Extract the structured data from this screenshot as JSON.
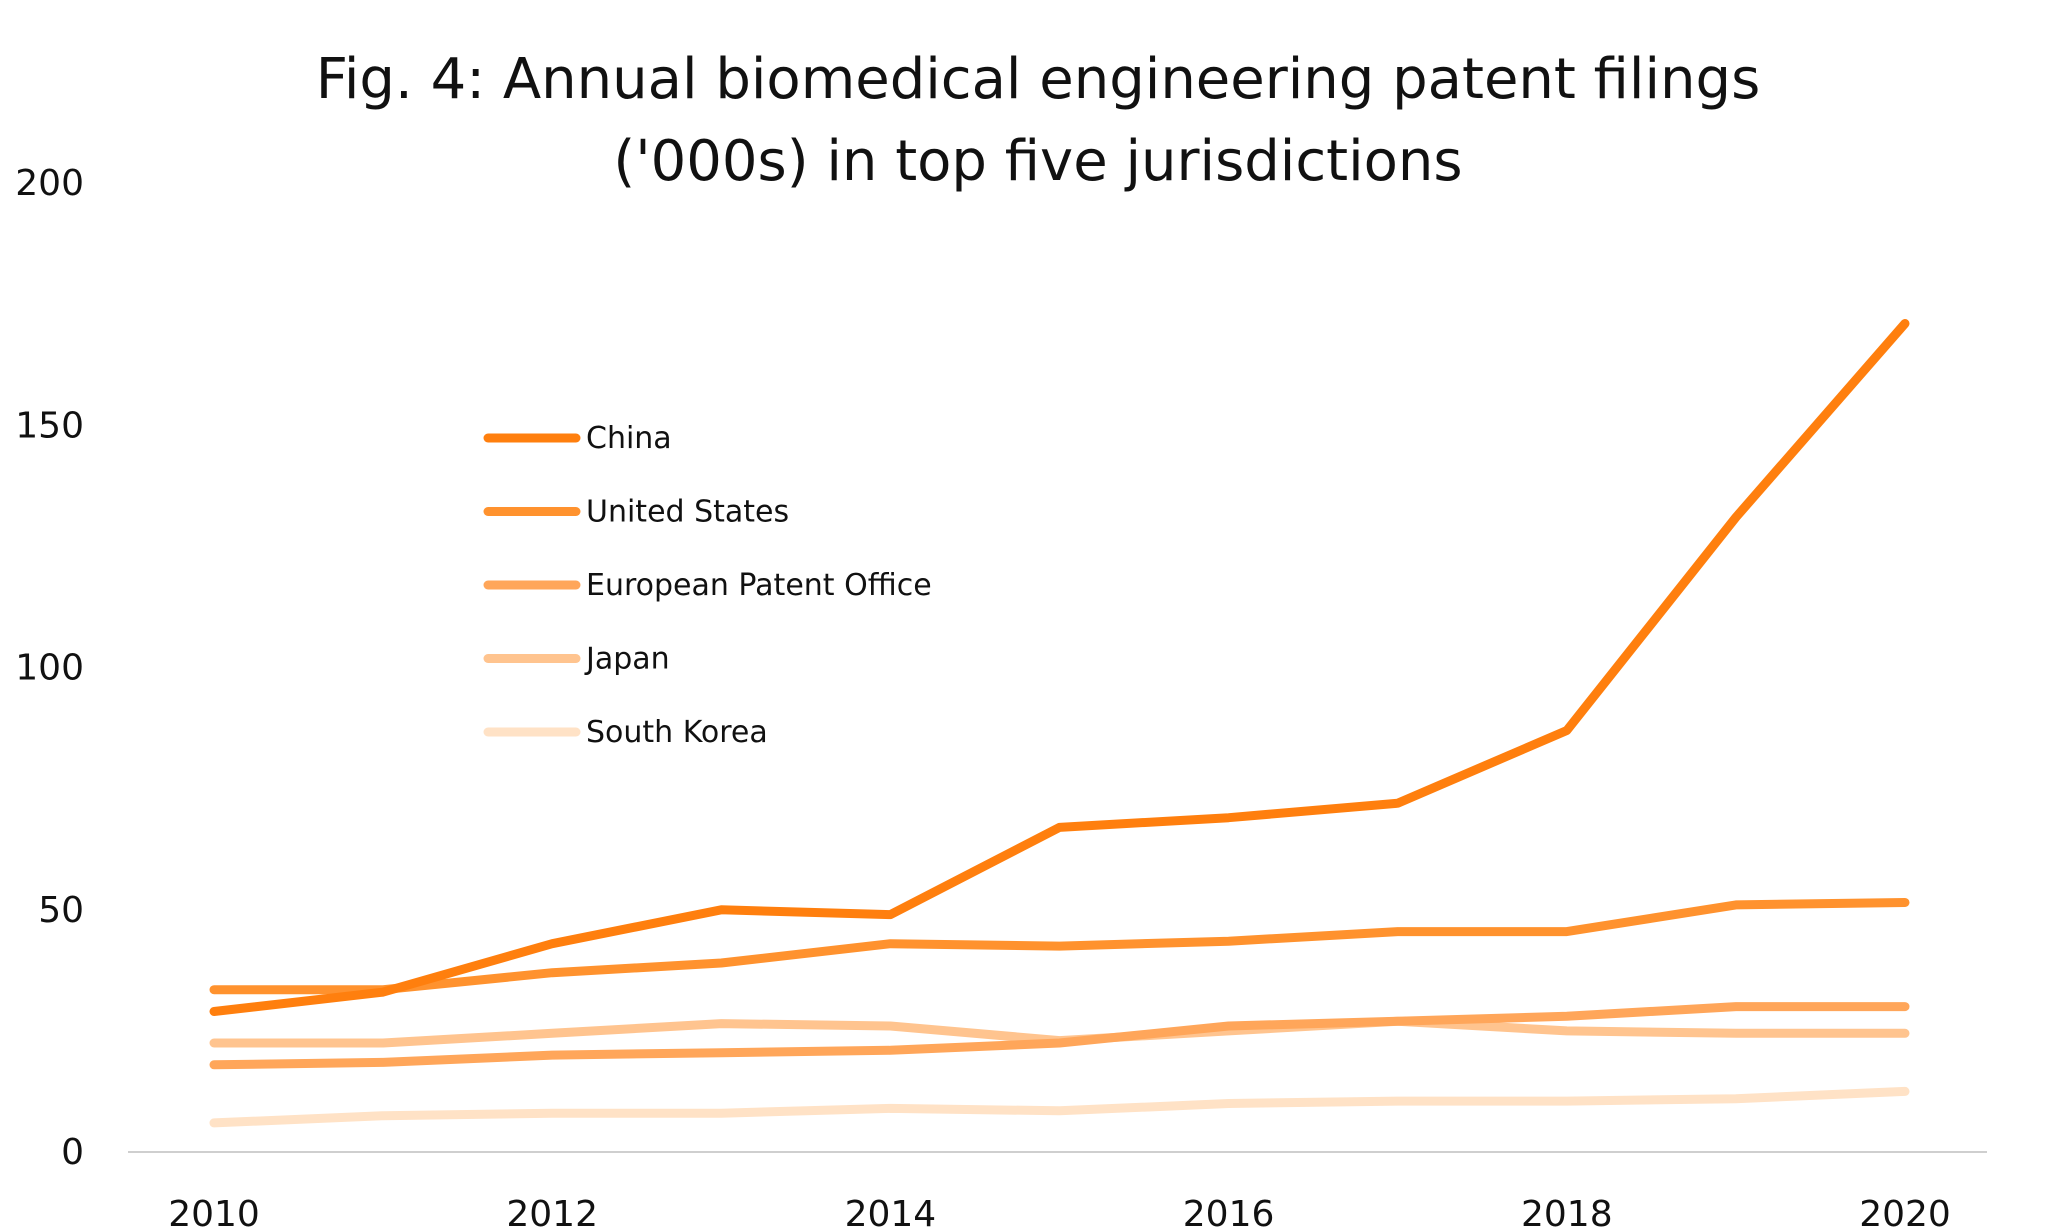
{
  "chart_data": {
    "type": "line",
    "title": [
      "Fig. 4: Annual biomedical engineering patent filings",
      "('000s) in top five jurisdictions"
    ],
    "xlabel": "",
    "ylabel": "",
    "x": [
      2010,
      2011,
      2012,
      2013,
      2014,
      2015,
      2016,
      2017,
      2018,
      2019,
      2020
    ],
    "xticks": [
      "2010",
      "2012",
      "2014",
      "2016",
      "2018",
      "2020"
    ],
    "yticks": [
      "0",
      "50",
      "100",
      "150",
      "200"
    ],
    "xlim": [
      2010,
      2020
    ],
    "ylim": [
      0,
      200
    ],
    "grid": false,
    "legend_position": "upper-left-center",
    "series": [
      {
        "name": "China",
        "color": "#FF7F0E",
        "values": [
          29,
          33,
          43,
          50,
          49,
          67,
          69,
          72,
          87,
          131,
          171
        ]
      },
      {
        "name": "United States",
        "color": "#FF922E",
        "values": [
          33.5,
          33.5,
          37,
          39,
          43,
          42.5,
          43.5,
          45.5,
          45.5,
          51,
          51.5
        ]
      },
      {
        "name": "European Patent Office",
        "color": "#FFA65A",
        "values": [
          18,
          18.5,
          20,
          20.5,
          21,
          22.5,
          26,
          27,
          28,
          30,
          30
        ]
      },
      {
        "name": "Japan",
        "color": "#FFC48F",
        "values": [
          22.5,
          22.5,
          24.5,
          26.5,
          26,
          23,
          25,
          27,
          25,
          24.5,
          24.5
        ]
      },
      {
        "name": "South Korea",
        "color": "#FFE2C6",
        "values": [
          6,
          7.5,
          8,
          8,
          9,
          8.5,
          10,
          10.5,
          10.5,
          11,
          12.5
        ]
      }
    ]
  }
}
